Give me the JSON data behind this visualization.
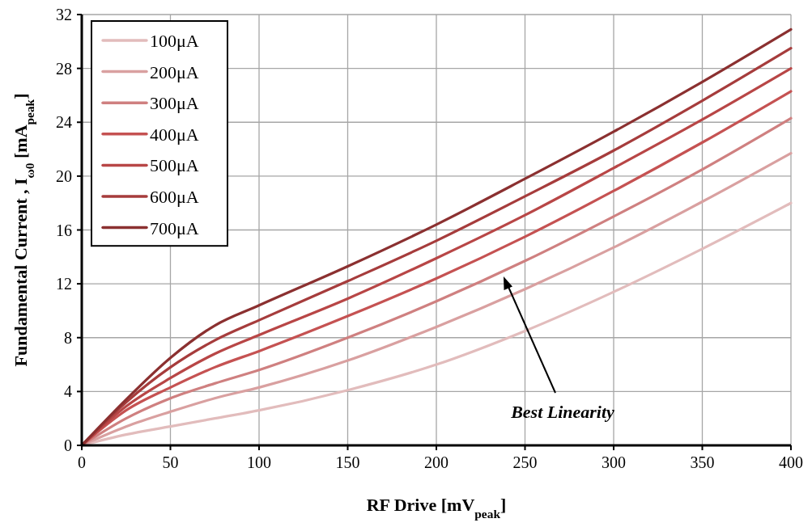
{
  "chart_data": {
    "type": "line",
    "xlabel": "RF Drive [mV$_{peak}$]",
    "ylabel": "Fundamental Current , I$_{ω0}$ [mA$_{peak}$]",
    "annotations": [
      "Best Linearity"
    ],
    "x": [
      0,
      25,
      50,
      75,
      100,
      150,
      200,
      250,
      300,
      350,
      400
    ],
    "series": [
      {
        "name": "100μA",
        "color": "#e2bcbc",
        "values": [
          0,
          0.8,
          1.4,
          2.0,
          2.6,
          4.1,
          6.0,
          8.5,
          11.4,
          14.6,
          18.0
        ]
      },
      {
        "name": "200μA",
        "color": "#d9a0a0",
        "values": [
          0,
          1.4,
          2.5,
          3.5,
          4.3,
          6.3,
          8.8,
          11.6,
          14.7,
          18.1,
          21.7
        ]
      },
      {
        "name": "300μA",
        "color": "#cf8080",
        "values": [
          0,
          2.0,
          3.5,
          4.6,
          5.6,
          8.0,
          10.7,
          13.7,
          17.0,
          20.5,
          24.3
        ]
      },
      {
        "name": "400μA",
        "color": "#c55252",
        "values": [
          0,
          2.6,
          4.3,
          5.8,
          7.0,
          9.6,
          12.4,
          15.5,
          18.9,
          22.5,
          26.3
        ]
      },
      {
        "name": "500μA",
        "color": "#b84646",
        "values": [
          0,
          2.9,
          5.0,
          6.8,
          8.2,
          10.9,
          13.9,
          17.1,
          20.6,
          24.2,
          28.0
        ]
      },
      {
        "name": "600μA",
        "color": "#a63c3c",
        "values": [
          0,
          3.2,
          5.8,
          7.8,
          9.3,
          12.2,
          15.2,
          18.5,
          21.9,
          25.6,
          29.5
        ]
      },
      {
        "name": "700μA",
        "color": "#8b3030",
        "values": [
          0,
          3.4,
          6.5,
          8.9,
          10.4,
          13.3,
          16.4,
          19.8,
          23.3,
          27.0,
          30.9
        ]
      }
    ],
    "xlim": [
      0,
      400
    ],
    "xticks": [
      0,
      50,
      100,
      150,
      200,
      250,
      300,
      350,
      400
    ],
    "ylim": [
      0,
      32
    ],
    "yticks": [
      0,
      4,
      8,
      12,
      16,
      20,
      24,
      28,
      32
    ],
    "grid": true,
    "legend": "top left",
    "marker": "none",
    "line_style": "solid"
  }
}
